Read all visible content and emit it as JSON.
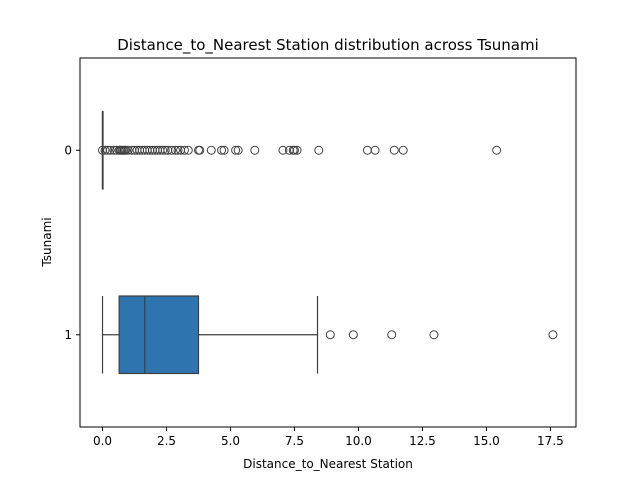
{
  "chart_data": {
    "type": "boxplot",
    "orientation": "horizontal",
    "title": "Distance_to_Nearest Station distribution across Tsunami",
    "xlabel": "Distance_to_Nearest Station",
    "ylabel": "Tsunami",
    "xlim": [
      -0.88,
      18.5
    ],
    "xticks": [
      0.0,
      2.5,
      5.0,
      7.5,
      10.0,
      12.5,
      15.0,
      17.5
    ],
    "xtick_labels": [
      "0.0",
      "2.5",
      "5.0",
      "7.5",
      "10.0",
      "12.5",
      "15.0",
      "17.5"
    ],
    "grid": false,
    "legend": "none",
    "box_color": "#2e75b0",
    "line_color": "#3f3f3f",
    "categories": [
      "0",
      "1"
    ],
    "boxes": [
      {
        "category": "0",
        "whisker_low": 0.0,
        "q1": 0.0,
        "median": 0.0,
        "q3": 0.0,
        "whisker_high": 0.0,
        "outliers": [
          0.0,
          0.1,
          0.2,
          0.3,
          0.45,
          0.55,
          0.65,
          0.7,
          0.75,
          0.8,
          0.85,
          0.9,
          1.0,
          1.15,
          1.25,
          1.35,
          1.45,
          1.55,
          1.65,
          1.75,
          1.85,
          1.95,
          2.05,
          2.15,
          2.25,
          2.35,
          2.45,
          2.55,
          2.7,
          2.85,
          2.95,
          3.05,
          3.2,
          3.35,
          3.75,
          3.8,
          4.25,
          4.65,
          4.75,
          5.2,
          5.3,
          5.95,
          7.05,
          7.3,
          7.45,
          7.5,
          7.6,
          8.45,
          10.35,
          10.65,
          11.4,
          11.75,
          15.4
        ]
      },
      {
        "category": "1",
        "whisker_low": 0.0,
        "q1": 0.65,
        "median": 1.65,
        "q3": 3.75,
        "whisker_high": 8.4,
        "outliers": [
          8.9,
          9.8,
          11.3,
          12.95,
          17.6
        ]
      }
    ]
  }
}
